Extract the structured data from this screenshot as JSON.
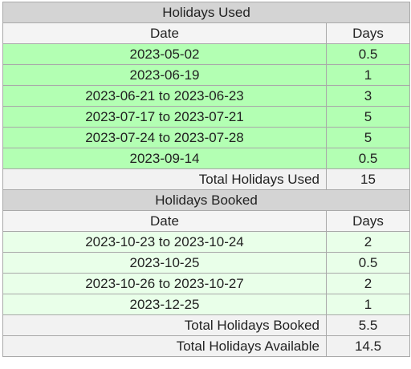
{
  "used": {
    "title": "Holidays Used",
    "date_header": "Date",
    "days_header": "Days",
    "rows": [
      {
        "date": "2023-05-02",
        "days": "0.5"
      },
      {
        "date": "2023-06-19",
        "days": "1"
      },
      {
        "date": "2023-06-21 to 2023-06-23",
        "days": "3"
      },
      {
        "date": "2023-07-17 to 2023-07-21",
        "days": "5"
      },
      {
        "date": "2023-07-24 to 2023-07-28",
        "days": "5"
      },
      {
        "date": "2023-09-14",
        "days": "0.5"
      }
    ],
    "total_label": "Total Holidays Used",
    "total_value": "15"
  },
  "booked": {
    "title": "Holidays Booked",
    "date_header": "Date",
    "days_header": "Days",
    "rows": [
      {
        "date": "2023-10-23 to 2023-10-24",
        "days": "2"
      },
      {
        "date": "2023-10-25",
        "days": "0.5"
      },
      {
        "date": "2023-10-26 to 2023-10-27",
        "days": "2"
      },
      {
        "date": "2023-12-25",
        "days": "1"
      }
    ],
    "total_label": "Total Holidays Booked",
    "total_value": "5.5"
  },
  "available": {
    "total_label": "Total Holidays Available",
    "total_value": "14.5"
  },
  "colors": {
    "section_header_bg": "#d4d4d4",
    "column_header_bg": "#f4f4f4",
    "used_row_bg": "#b3ffb3",
    "booked_row_bg": "#e9ffe9",
    "total_row_bg": "#f2f2f2",
    "border": "#a9a9a9"
  }
}
